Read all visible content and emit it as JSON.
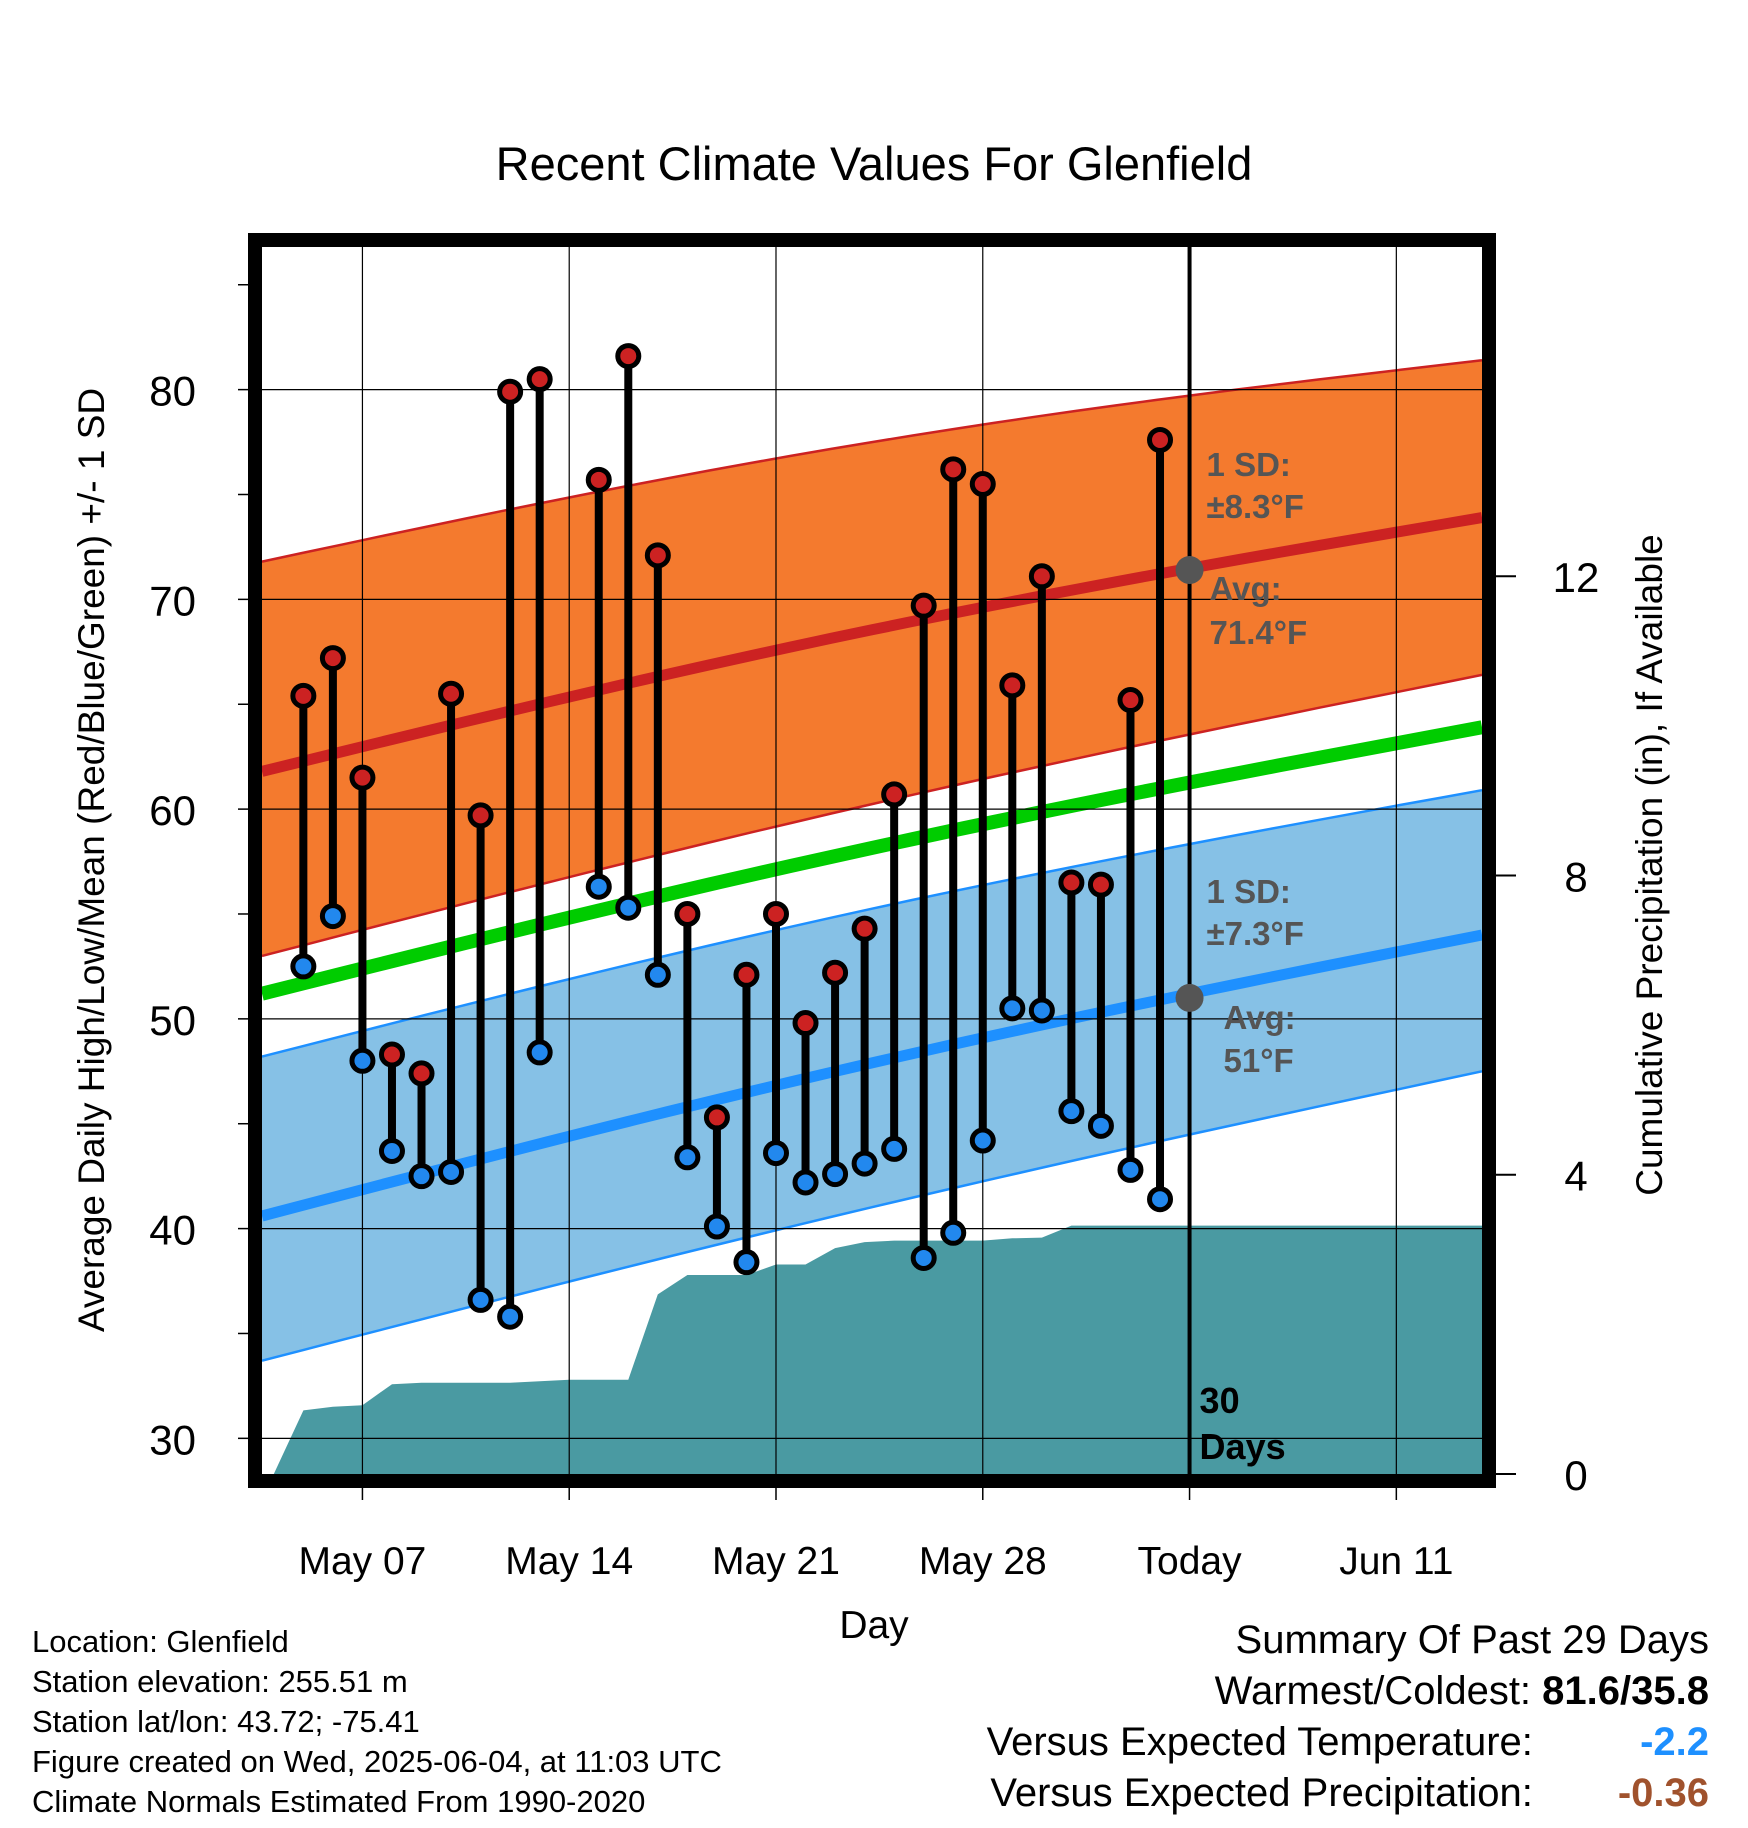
{
  "chart_data": {
    "type": "line",
    "title": "Recent Climate Values For Glenfield",
    "xlabel": "Day",
    "ylabel": "Average Daily High/Low/Mean (Red/Blue/Green) +/- 1 SD",
    "y2label": "Cumulative Precipitation (in), If Available",
    "ylim": [
      28.3,
      86.8
    ],
    "y2lim": [
      0,
      16.4
    ],
    "xlim": [
      "2025-05-03.6",
      "2025-06-13.9"
    ],
    "yticks": [
      30,
      40,
      50,
      60,
      70,
      80
    ],
    "y2ticks": [
      0,
      4,
      8,
      12
    ],
    "xticks": [
      {
        "date": "2025-05-07",
        "label": "May 07"
      },
      {
        "date": "2025-05-14",
        "label": "May 14"
      },
      {
        "date": "2025-05-21",
        "label": "May 21"
      },
      {
        "date": "2025-05-28",
        "label": "May 28"
      },
      {
        "date": "2025-06-04",
        "label": "Today"
      },
      {
        "date": "2025-06-11",
        "label": "Jun 11"
      }
    ],
    "today": "2025-06-04",
    "window_label": [
      "30",
      "Days"
    ],
    "dates": [
      "2025-05-05",
      "2025-05-06",
      "2025-05-07",
      "2025-05-08",
      "2025-05-09",
      "2025-05-10",
      "2025-05-11",
      "2025-05-12",
      "2025-05-13",
      "2025-05-14",
      "2025-05-15",
      "2025-05-16",
      "2025-05-17",
      "2025-05-18",
      "2025-05-19",
      "2025-05-20",
      "2025-05-21",
      "2025-05-22",
      "2025-05-23",
      "2025-05-24",
      "2025-05-25",
      "2025-05-26",
      "2025-05-27",
      "2025-05-28",
      "2025-05-29",
      "2025-05-30",
      "2025-05-31",
      "2025-06-01",
      "2025-06-02",
      "2025-06-03"
    ],
    "series": [
      {
        "name": "High",
        "color": "#cc2222",
        "values": [
          65.4,
          67.2,
          61.5,
          48.3,
          47.4,
          65.5,
          59.7,
          79.9,
          80.5,
          null,
          75.7,
          81.6,
          72.1,
          55.0,
          45.3,
          52.1,
          55.0,
          49.8,
          52.2,
          54.3,
          60.7,
          69.7,
          76.2,
          75.5,
          65.9,
          71.1,
          56.5,
          56.4,
          65.2,
          77.6
        ]
      },
      {
        "name": "Low",
        "color": "#2288ee",
        "values": [
          52.5,
          54.9,
          48.0,
          43.7,
          42.5,
          42.7,
          36.6,
          35.8,
          48.4,
          null,
          56.3,
          55.3,
          52.1,
          43.4,
          40.1,
          38.4,
          43.6,
          42.2,
          42.6,
          43.1,
          43.8,
          38.6,
          39.8,
          44.2,
          50.5,
          50.4,
          45.6,
          44.9,
          42.8,
          41.4
        ]
      }
    ],
    "normals": {
      "x_start": "2025-05-03.6",
      "x_end": "2025-06-13.9",
      "high_avg": [
        61.8,
        73.9
      ],
      "high_upper": [
        71.8,
        81.4
      ],
      "high_lower": [
        53.0,
        66.4
      ],
      "low_avg": [
        40.6,
        54.0
      ],
      "low_upper": [
        48.2,
        60.9
      ],
      "low_lower": [
        33.7,
        47.5
      ],
      "mean_avg": [
        51.2,
        63.9
      ],
      "high_color": "#cc2222",
      "high_band_color": "#f47a2e",
      "low_color": "#1e90ff",
      "low_band_color": "#86c1e6",
      "mean_color": "#00cc00"
    },
    "precip_color": "#4a9aa2",
    "precip": {
      "dates": [
        "2025-05-04",
        "2025-05-05",
        "2025-05-06",
        "2025-05-07",
        "2025-05-08",
        "2025-05-09",
        "2025-05-10",
        "2025-05-11",
        "2025-05-12",
        "2025-05-13",
        "2025-05-14",
        "2025-05-15",
        "2025-05-16",
        "2025-05-17",
        "2025-05-18",
        "2025-05-19",
        "2025-05-20",
        "2025-05-21",
        "2025-05-22",
        "2025-05-23",
        "2025-05-24",
        "2025-05-25",
        "2025-05-26",
        "2025-05-27",
        "2025-05-28",
        "2025-05-29",
        "2025-05-30",
        "2025-05-31",
        "2025-06-01",
        "2025-06-02",
        "2025-06-03",
        "2025-06-13.9"
      ],
      "values": [
        0,
        0.85,
        0.9,
        0.92,
        1.2,
        1.22,
        1.22,
        1.22,
        1.22,
        1.24,
        1.26,
        1.26,
        1.26,
        2.4,
        2.66,
        2.66,
        2.66,
        2.8,
        2.8,
        3.02,
        3.1,
        3.12,
        3.12,
        3.12,
        3.12,
        3.15,
        3.16,
        3.32,
        3.32,
        3.32,
        3.32,
        3.32
      ]
    },
    "annotations": {
      "high_sd": [
        "1 SD:",
        "±8.3°F"
      ],
      "high_avg": [
        "Avg:",
        "71.4°F"
      ],
      "high_avg_value": 71.4,
      "low_sd": [
        "1 SD:",
        "±7.3°F"
      ],
      "low_avg": [
        "Avg:",
        "51°F"
      ],
      "low_avg_value": 51
    },
    "grid": true
  },
  "info": [
    "Location: Glenfield",
    "Station elevation: 255.51 m",
    "Station lat/lon: 43.72; -75.41",
    "Figure created on Wed, 2025-06-04, at 11:03 UTC",
    "Climate Normals Estimated From 1990-2020"
  ],
  "summary": {
    "heading": "Summary Of Past 29 Days",
    "warmest_coldest_label": "Warmest/Coldest:",
    "warmest_coldest_value": "81.6/35.8",
    "temp_label": "Versus Expected Temperature:",
    "temp_value": "-2.2",
    "temp_color": "#1e90ff",
    "precip_label": "Versus Expected Precipitation:",
    "precip_value": "-0.36",
    "precip_color": "#a0522d"
  }
}
